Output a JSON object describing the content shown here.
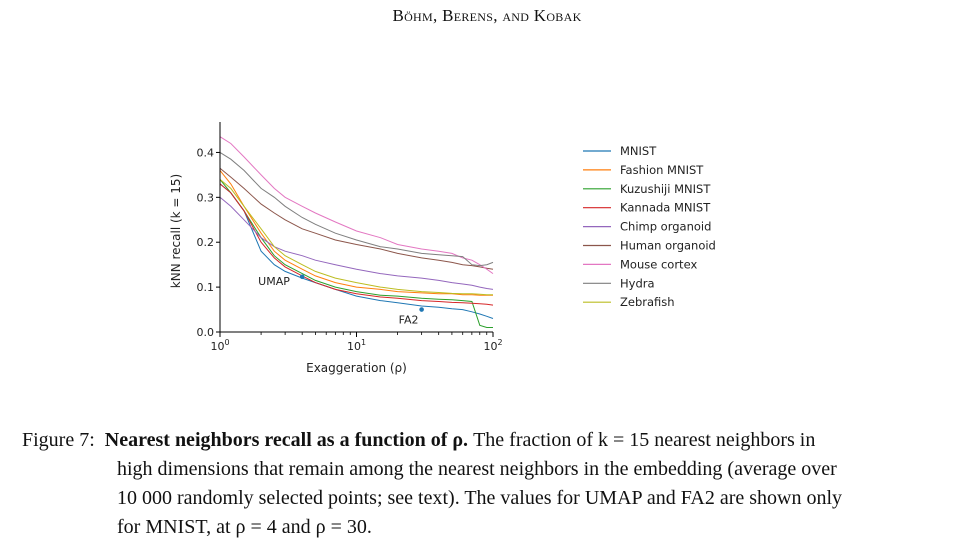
{
  "header": {
    "running_head": "Böhm, Berens, and Kobak"
  },
  "caption": {
    "label": "Figure 7:",
    "title": "Nearest neighbors recall as a function of ρ.",
    "line1_text": "The fraction of k = 15 nearest neighbors in",
    "line2": "high dimensions that remain among the nearest neighbors in the embedding (average over",
    "line3": "10 000 randomly selected points; see text). The values for UMAP and FA2 are shown only",
    "line4": "for MNIST, at ρ = 4 and ρ = 30."
  },
  "chart_data": {
    "type": "line",
    "xscale": "log",
    "xlabel": "Exaggeration (ρ)",
    "ylabel": "kNN recall (k = 15)",
    "xlim": [
      1,
      100
    ],
    "ylim": [
      0,
      0.45
    ],
    "x_ticks": [
      "10^0",
      "10^1",
      "10^2"
    ],
    "y_ticks": [
      "0.0",
      "0.1",
      "0.2",
      "0.3",
      "0.4"
    ],
    "x": [
      1,
      1.2,
      1.5,
      2,
      2.5,
      3,
      4,
      5,
      7,
      10,
      15,
      20,
      30,
      40,
      50,
      60,
      70,
      80,
      90,
      100
    ],
    "series": [
      {
        "name": "MNIST",
        "color": "#1f77b4",
        "values": [
          0.33,
          0.31,
          0.27,
          0.18,
          0.15,
          0.135,
          0.12,
          0.11,
          0.095,
          0.08,
          0.07,
          0.065,
          0.058,
          0.055,
          0.052,
          0.05,
          0.045,
          0.04,
          0.035,
          0.03
        ]
      },
      {
        "name": "Fashion MNIST",
        "color": "#ff7f0e",
        "values": [
          0.36,
          0.33,
          0.28,
          0.22,
          0.18,
          0.16,
          0.14,
          0.125,
          0.11,
          0.1,
          0.095,
          0.09,
          0.087,
          0.085,
          0.085,
          0.083,
          0.083,
          0.082,
          0.082,
          0.082
        ]
      },
      {
        "name": "Kuzushiji MNIST",
        "color": "#2ca02c",
        "values": [
          0.34,
          0.31,
          0.27,
          0.21,
          0.17,
          0.15,
          0.13,
          0.115,
          0.1,
          0.09,
          0.082,
          0.08,
          0.075,
          0.073,
          0.072,
          0.07,
          0.068,
          0.015,
          0.01,
          0.01
        ]
      },
      {
        "name": "Kannada MNIST",
        "color": "#d62728",
        "values": [
          0.33,
          0.31,
          0.27,
          0.2,
          0.165,
          0.145,
          0.125,
          0.11,
          0.095,
          0.085,
          0.078,
          0.075,
          0.07,
          0.068,
          0.066,
          0.065,
          0.064,
          0.063,
          0.062,
          0.06
        ]
      },
      {
        "name": "Chimp organoid",
        "color": "#9467bd",
        "values": [
          0.3,
          0.28,
          0.25,
          0.21,
          0.19,
          0.18,
          0.17,
          0.16,
          0.15,
          0.14,
          0.13,
          0.125,
          0.12,
          0.115,
          0.11,
          0.107,
          0.104,
          0.1,
          0.097,
          0.095
        ]
      },
      {
        "name": "Human organoid",
        "color": "#8c564b",
        "values": [
          0.365,
          0.345,
          0.32,
          0.285,
          0.265,
          0.25,
          0.23,
          0.22,
          0.205,
          0.195,
          0.185,
          0.175,
          0.165,
          0.16,
          0.155,
          0.15,
          0.148,
          0.145,
          0.142,
          0.14
        ]
      },
      {
        "name": "Mouse cortex",
        "color": "#e377c2",
        "values": [
          0.435,
          0.42,
          0.39,
          0.35,
          0.32,
          0.3,
          0.28,
          0.265,
          0.245,
          0.225,
          0.21,
          0.195,
          0.185,
          0.18,
          0.175,
          0.165,
          0.16,
          0.15,
          0.14,
          0.13
        ]
      },
      {
        "name": "Hydra",
        "color": "#7f7f7f",
        "values": [
          0.4,
          0.385,
          0.36,
          0.32,
          0.3,
          0.28,
          0.255,
          0.24,
          0.22,
          0.205,
          0.19,
          0.185,
          0.175,
          0.172,
          0.17,
          0.168,
          0.15,
          0.148,
          0.15,
          0.155
        ]
      },
      {
        "name": "Zebrafish",
        "color": "#bcbd22",
        "values": [
          0.34,
          0.32,
          0.28,
          0.23,
          0.19,
          0.17,
          0.15,
          0.135,
          0.12,
          0.11,
          0.1,
          0.095,
          0.09,
          0.088,
          0.086,
          0.085,
          0.085,
          0.084,
          0.083,
          0.083
        ]
      }
    ],
    "annotations": [
      {
        "label": "UMAP",
        "x": 4,
        "y": 0.123,
        "color": "#1f77b4"
      },
      {
        "label": "FA2",
        "x": 30,
        "y": 0.05,
        "color": "#1f77b4"
      }
    ],
    "legend_position": "right"
  }
}
